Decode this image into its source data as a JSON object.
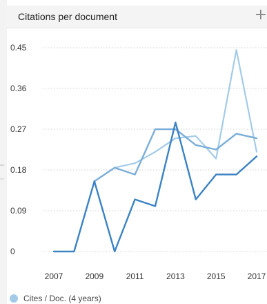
{
  "panel": {
    "title": "Citations per document",
    "add_icon": "plus-icon",
    "add_glyph": "+"
  },
  "colors": {
    "series": [
      "#a3cbe8",
      "#7aaed9",
      "#3a82c4"
    ],
    "grid": "#d0d0d0"
  },
  "chart_data": {
    "type": "line",
    "title": "Citations per document",
    "xlabel": "",
    "ylabel": "",
    "x": [
      2007,
      2008,
      2009,
      2010,
      2011,
      2012,
      2013,
      2014,
      2015,
      2016,
      2017
    ],
    "x_tick_labels": [
      "2007",
      "2009",
      "2011",
      "2013",
      "2015",
      "2017"
    ],
    "y_tick_labels": [
      "0.45",
      "0.36",
      "0.27",
      "0.18",
      "0.09",
      "0"
    ],
    "ylim": [
      0,
      0.45
    ],
    "xlim": [
      2007,
      2017
    ],
    "grid": "horizontal dotted",
    "legend_placement": "bottom-left",
    "series": [
      {
        "name": "Cites / Doc. (4 years)",
        "x": [
          2009,
          2010,
          2011,
          2012,
          2013,
          2014,
          2015,
          2016,
          2017
        ],
        "values": [
          0.155,
          0.185,
          0.195,
          0.22,
          0.25,
          0.255,
          0.205,
          0.445,
          0.22
        ]
      },
      {
        "x": [
          2009,
          2010,
          2011,
          2012,
          2013,
          2014,
          2015,
          2016,
          2017
        ],
        "values": [
          0.155,
          0.185,
          0.17,
          0.27,
          0.27,
          0.235,
          0.225,
          0.26,
          0.25
        ]
      },
      {
        "x": [
          2007,
          2008,
          2009,
          2010,
          2011,
          2012,
          2013,
          2014,
          2015,
          2016,
          2017
        ],
        "values": [
          0,
          0,
          0.155,
          0,
          0.115,
          0.1,
          0.285,
          0.115,
          0.17,
          0.17,
          0.21
        ]
      }
    ]
  }
}
